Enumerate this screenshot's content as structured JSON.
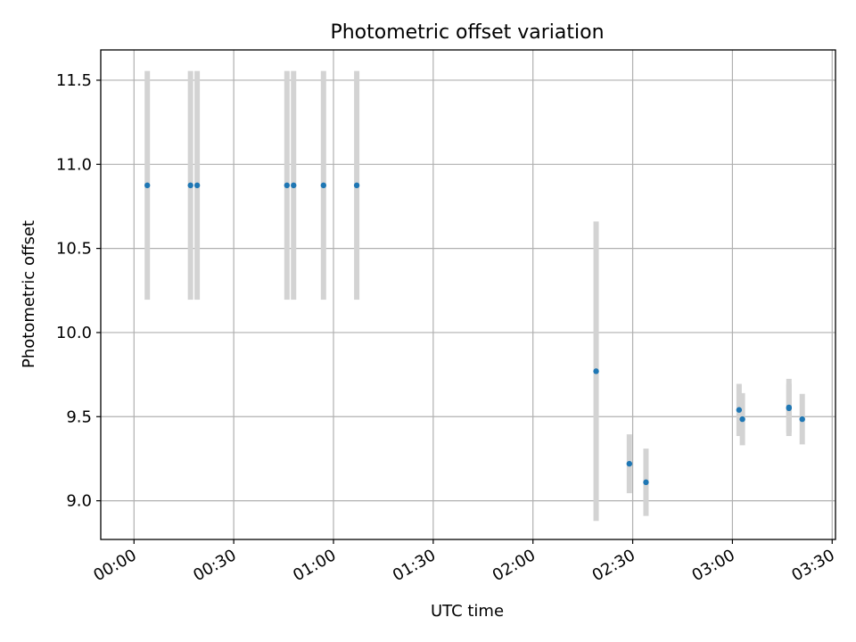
{
  "chart_data": {
    "type": "scatter",
    "title": "Photometric offset variation",
    "xlabel": "UTC time",
    "ylabel": "Photometric offset",
    "xlim": [
      "23:50",
      "03:31"
    ],
    "ylim": [
      8.77,
      11.68
    ],
    "x_ticks": [
      "00:00",
      "00:30",
      "01:00",
      "01:30",
      "02:00",
      "02:30",
      "03:00",
      "03:30"
    ],
    "y_ticks": [
      "9.0",
      "9.5",
      "10.0",
      "10.5",
      "11.0",
      "11.5"
    ],
    "grid": true,
    "series": [
      {
        "marker_color": "#1f77b4",
        "errorbar_color": "#d3d3d3",
        "points": [
          {
            "time": "00:04",
            "y": 10.875,
            "err": 0.68
          },
          {
            "time": "00:17",
            "y": 10.875,
            "err": 0.68
          },
          {
            "time": "00:19",
            "y": 10.875,
            "err": 0.68
          },
          {
            "time": "00:46",
            "y": 10.875,
            "err": 0.68
          },
          {
            "time": "00:48",
            "y": 10.875,
            "err": 0.68
          },
          {
            "time": "00:57",
            "y": 10.875,
            "err": 0.68
          },
          {
            "time": "01:07",
            "y": 10.875,
            "err": 0.68
          },
          {
            "time": "02:19",
            "y": 9.77,
            "err": 0.89
          },
          {
            "time": "02:29",
            "y": 9.22,
            "err": 0.175
          },
          {
            "time": "02:34",
            "y": 9.11,
            "err": 0.2
          },
          {
            "time": "03:02",
            "y": 9.54,
            "err": 0.155
          },
          {
            "time": "03:03",
            "y": 9.485,
            "err": 0.155
          },
          {
            "time": "03:17",
            "y": 9.55,
            "err": 0.145
          },
          {
            "time": "03:17",
            "y": 9.555,
            "err": 0.17
          },
          {
            "time": "03:21",
            "y": 9.485,
            "err": 0.15
          }
        ]
      }
    ]
  }
}
